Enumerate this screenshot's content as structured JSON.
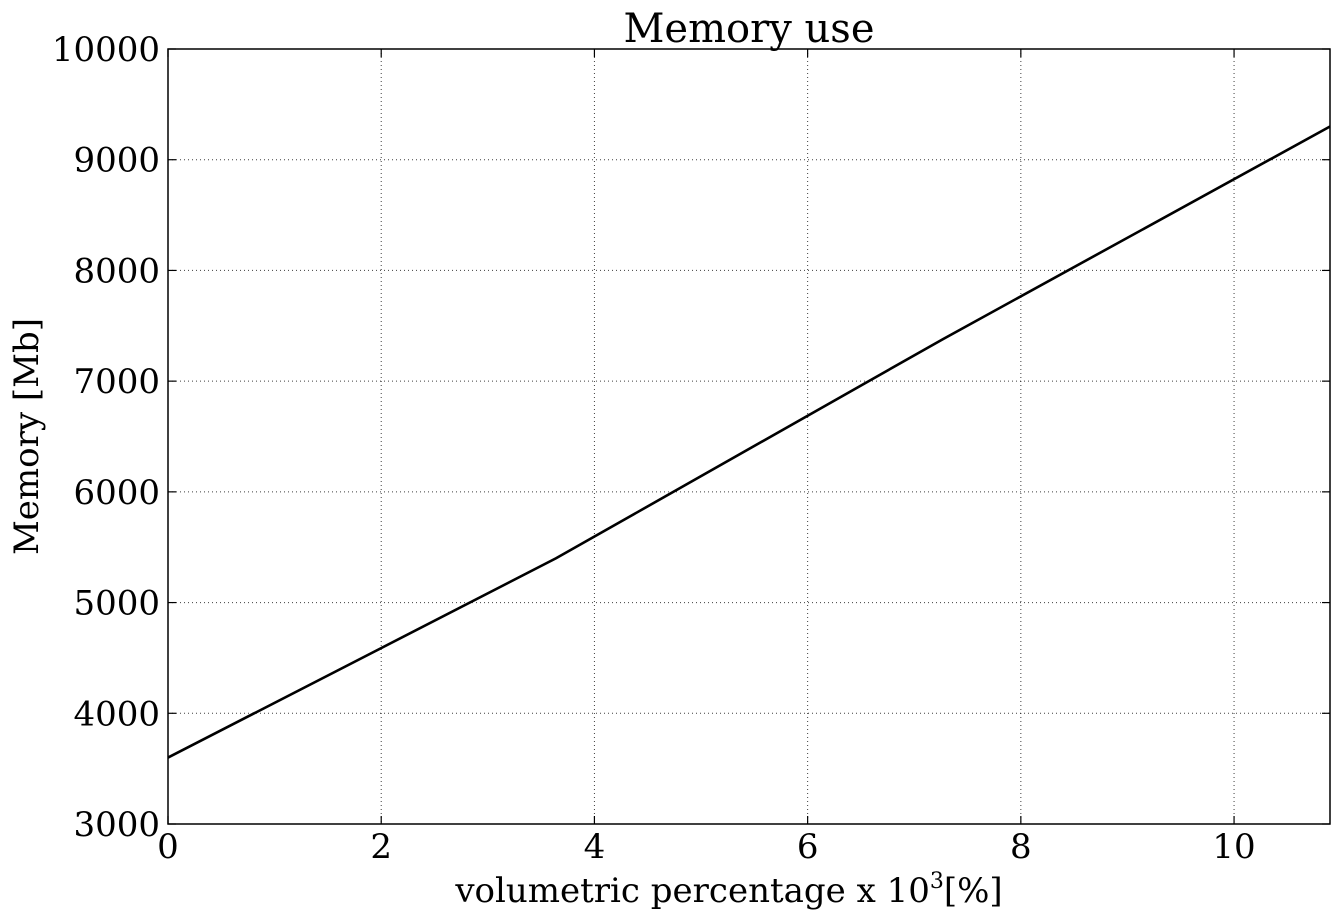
{
  "chart_data": {
    "type": "line",
    "title": "Memory use",
    "xlabel": "volumetric percentage x 10",
    "xlabel_superscript": "3",
    "xlabel_unit": "[%]",
    "ylabel": "Memory [Mb]",
    "xlim": [
      0,
      10.9
    ],
    "ylim": [
      3000,
      10000
    ],
    "x_ticks": [
      0,
      2,
      4,
      6,
      8,
      10
    ],
    "x_tick_labels": [
      "0",
      "2",
      "4",
      "6",
      "8",
      "10"
    ],
    "y_ticks": [
      3000,
      4000,
      5000,
      6000,
      7000,
      8000,
      9000,
      10000
    ],
    "y_tick_labels": [
      "3000",
      "4000",
      "5000",
      "6000",
      "7000",
      "8000",
      "9000",
      "10000"
    ],
    "grid": true,
    "series": [
      {
        "color": "#000000",
        "x": [
          0,
          3.64,
          7.27,
          10.9
        ],
        "y": [
          3600,
          5400,
          7380,
          9300
        ]
      }
    ]
  }
}
